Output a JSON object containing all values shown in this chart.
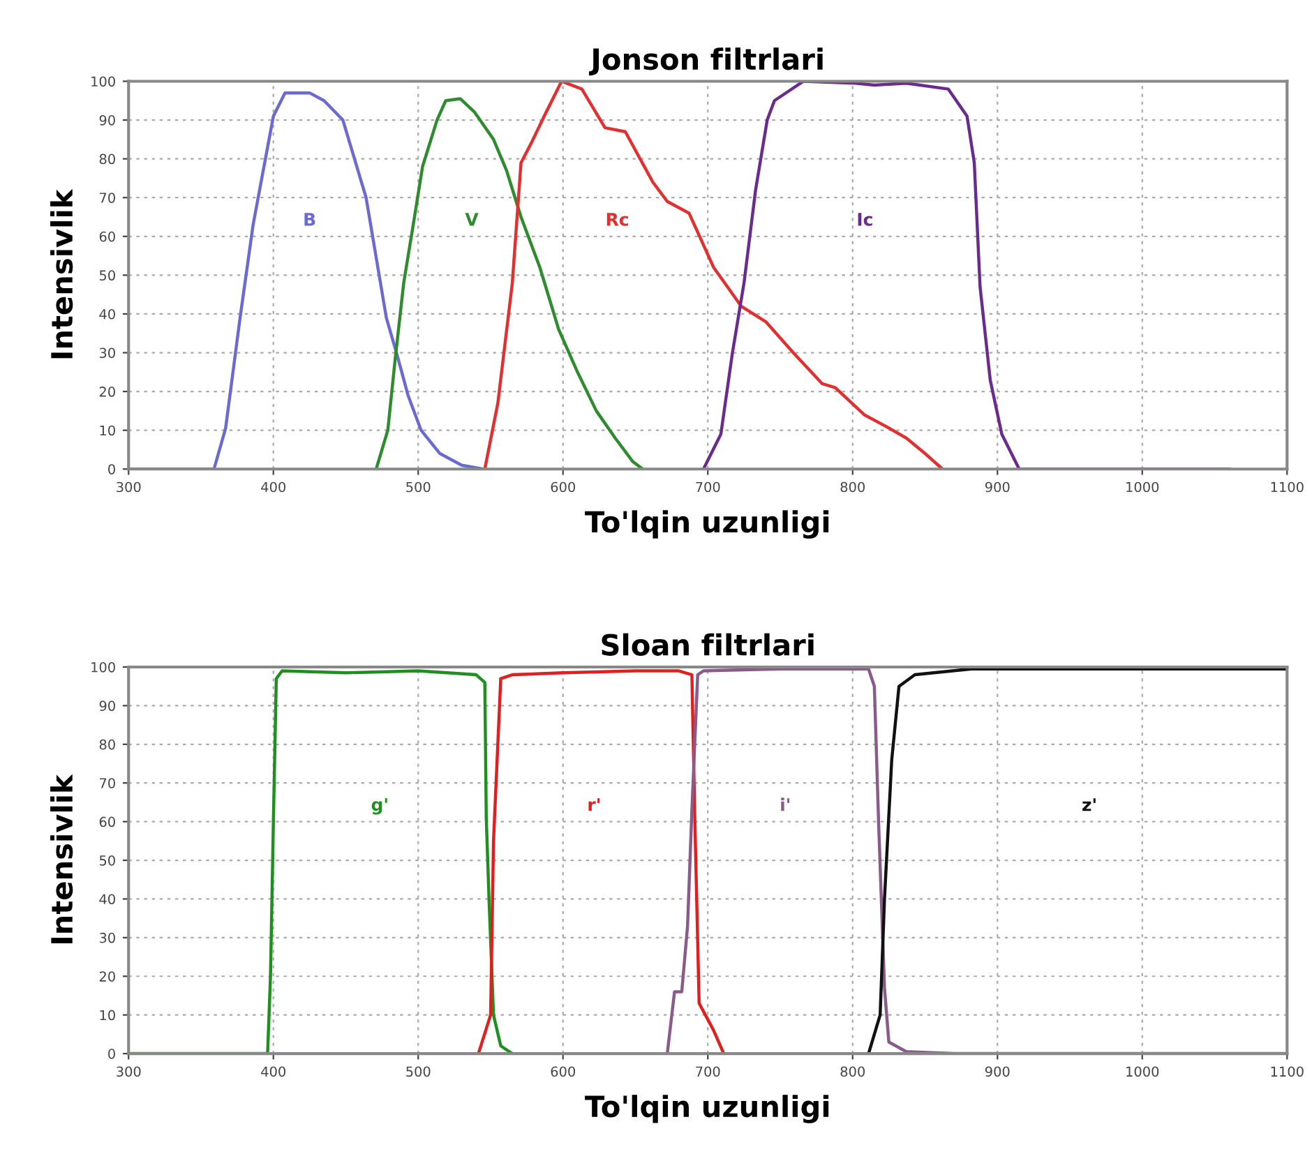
{
  "chart_data": [
    {
      "type": "line",
      "title": "Jonson filtrlari",
      "xlabel": "To'lqin uzunligi",
      "ylabel": "Intensivlik",
      "xlim": [
        300,
        1100
      ],
      "ylim": [
        0,
        100
      ],
      "xticks": [
        300,
        400,
        500,
        600,
        700,
        800,
        900,
        1000,
        1100
      ],
      "yticks": [
        0,
        10,
        20,
        30,
        40,
        50,
        60,
        70,
        80,
        90,
        100
      ],
      "grid": true,
      "series": [
        {
          "name": "B",
          "color": "#6a6ad0",
          "x": [
            300,
            359,
            367,
            377,
            386,
            400,
            408,
            425,
            435,
            448,
            464,
            478,
            485,
            493,
            502,
            515,
            530,
            545
          ],
          "values": [
            0,
            0,
            10.5,
            39,
            63,
            91,
            97,
            97,
            95,
            90,
            70,
            39,
            30,
            19,
            10,
            4,
            1,
            0
          ]
        },
        {
          "name": "V",
          "color": "#2e8b2e",
          "x": [
            471,
            479,
            484,
            490,
            497,
            503,
            513,
            519,
            529,
            539,
            552,
            561,
            571,
            584,
            597,
            610,
            623,
            636,
            648,
            655
          ],
          "values": [
            0,
            10,
            28,
            48,
            64,
            78,
            90,
            95,
            95.5,
            92,
            85,
            77,
            65,
            52,
            36,
            25,
            15,
            8,
            2,
            0
          ]
        },
        {
          "name": "Rc",
          "color": "#e03030",
          "x": [
            546,
            555,
            565,
            571,
            578,
            587,
            599,
            613,
            629,
            643,
            662,
            672,
            687,
            704,
            723,
            740,
            759,
            779,
            788,
            808,
            823,
            837,
            850,
            862
          ],
          "values": [
            0,
            17,
            48,
            79,
            84,
            91,
            100,
            98,
            88,
            87,
            74,
            69,
            66,
            52,
            42,
            38,
            30,
            22,
            21,
            14,
            11,
            8,
            4,
            0
          ]
        },
        {
          "name": "Ic",
          "color": "#6a2c8c",
          "x": [
            697,
            709,
            717,
            725,
            733,
            741,
            746,
            766,
            802,
            815,
            837,
            866,
            879,
            884,
            888,
            895,
            903,
            915,
            1060
          ],
          "values": [
            0,
            9,
            30,
            48,
            72,
            90,
            95,
            100,
            99.5,
            99,
            99.5,
            98,
            91,
            79,
            47,
            23,
            9,
            0,
            0
          ]
        }
      ]
    },
    {
      "type": "line",
      "title": "Sloan filtrlari",
      "xlabel": "To'lqin uzunligi",
      "ylabel": "Intensivlik",
      "xlim": [
        300,
        1100
      ],
      "ylim": [
        0,
        100
      ],
      "xticks": [
        300,
        400,
        500,
        600,
        700,
        800,
        900,
        1000,
        1100
      ],
      "yticks": [
        0,
        10,
        20,
        30,
        40,
        50,
        60,
        70,
        80,
        90,
        100
      ],
      "grid": true,
      "series": [
        {
          "name": "g'",
          "color": "#1f8f1f",
          "x": [
            300,
            393,
            396,
            398,
            400,
            402,
            406,
            450,
            500,
            540,
            546,
            547,
            549,
            552,
            557,
            565
          ],
          "values": [
            0,
            0,
            0,
            20,
            60,
            97,
            99,
            98.5,
            99,
            98,
            96,
            61,
            39,
            10,
            2,
            0
          ]
        },
        {
          "name": "r'",
          "color": "#e02020",
          "x": [
            542,
            550,
            552,
            557,
            565,
            600,
            650,
            680,
            689,
            691,
            694,
            704,
            711
          ],
          "values": [
            0.5,
            10,
            55,
            97,
            98,
            98.5,
            99,
            99,
            98,
            61,
            13,
            6,
            0
          ]
        },
        {
          "name": "i'",
          "color": "#8a5a8a",
          "x": [
            672,
            677,
            682,
            686,
            689,
            693,
            697,
            750,
            811,
            815,
            818,
            822,
            825,
            837,
            870,
            1100
          ],
          "values": [
            0,
            16,
            16,
            33,
            63,
            98,
            99,
            99.5,
            99.5,
            95,
            59,
            17,
            3,
            0.5,
            0,
            0
          ]
        },
        {
          "name": "z'",
          "color": "#111111",
          "x": [
            811,
            819,
            822,
            827,
            832,
            843,
            882,
            1100
          ],
          "values": [
            0,
            10,
            40,
            76,
            95,
            98,
            99.5,
            99.5
          ]
        }
      ]
    }
  ]
}
